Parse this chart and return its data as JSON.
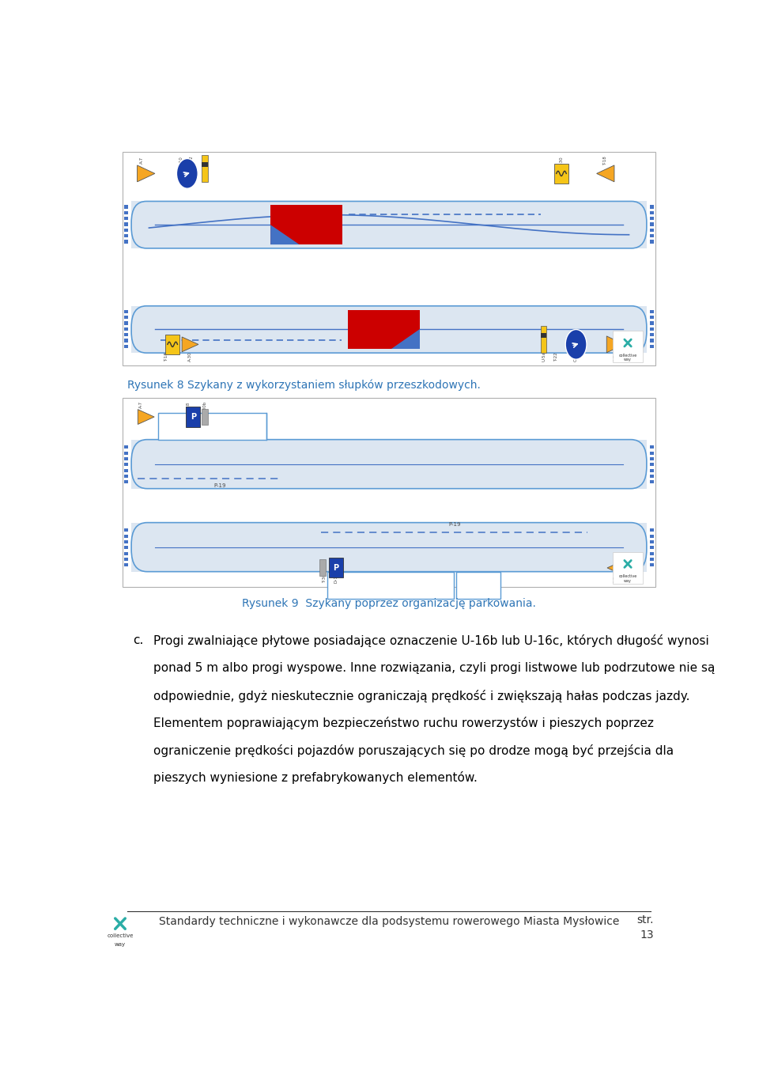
{
  "page_bg": "#ffffff",
  "fig_width": 9.6,
  "fig_height": 13.59,
  "fig_dpi": 100,
  "caption1": "Rysunek 8 Szykany z wykorzystaniem słupków przeszkodowych.",
  "caption2": "Rysunek 9  Szykany poprzez organizację parkowania.",
  "caption_color": "#2e75b6",
  "caption_fontsize": 10.0,
  "text_c_label": "c.",
  "text_c_line1": "Progi zwalniające płytowe posiadające oznaczenie U-16b lub U-16c, których długość wynosi",
  "text_c_line2": "ponad 5 m albo progi wyspowe. Inne rozwiązania, czyli progi listwowe lub podrzutowe nie są",
  "text_c_line3": "odpowiednie, gdyż nieskutecznie ograniczają prędkość i zwiększają hałas podczas jazdy.",
  "text_c_line4": "Elementem poprawiającym bezpieczeństwo ruchu rowerzystów i pieszych poprzez",
  "text_c_line5": "ograniczenie prędkości pojazdów poruszających się po drodze mogą być przejścia dla",
  "text_c_line6": "pieszych wyniesione z prefabrykowanych elementów.",
  "text_color": "#000000",
  "text_fontsize": 11.0,
  "footer_text": "Standardy techniczne i wykonawcze dla podsystemu rowerowego Miasta Mysłowice",
  "footer_fontsize": 10,
  "page_num_line1": "str.",
  "page_num_line2": "13",
  "page_num_fontsize": 10,
  "road_fill": "#dce6f1",
  "road_border": "#5b9bd5",
  "road_center_line": "#4472c4",
  "dot_color": "#4472c4",
  "red_color": "#cc0000",
  "hatch_blue": "#4472c4",
  "yellow_color": "#f5c518",
  "yellow_arrow": "#f5a623",
  "blue_sign": "#1a3faa",
  "blue_circle": "#1a3faa",
  "grey_post": "#999999",
  "teal_logo": "#2bada6",
  "diagram_border": "#b0b0b0",
  "dashed_blue": "#4472c4",
  "ml": 0.055,
  "mr": 0.945
}
